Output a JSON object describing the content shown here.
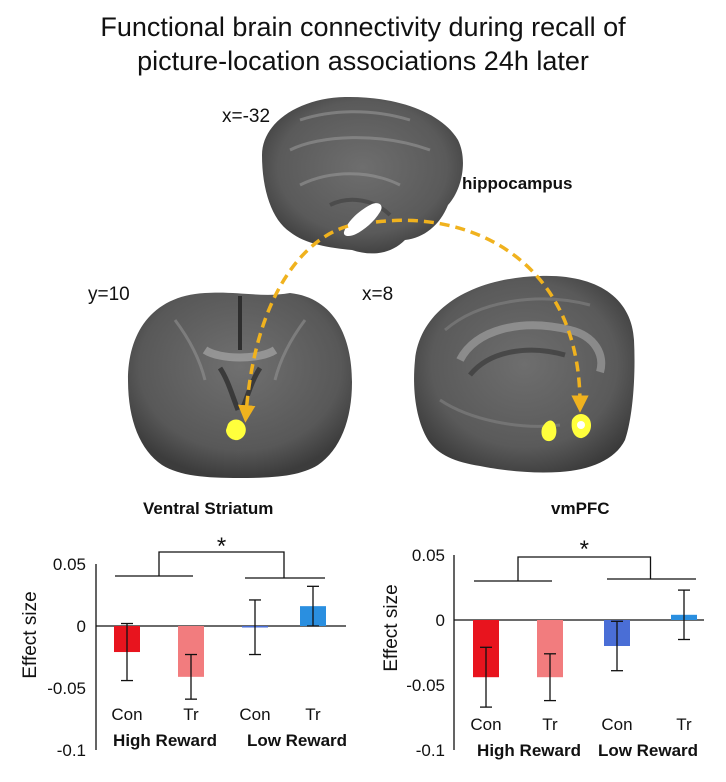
{
  "title_line1": "Functional brain connectivity during recall of",
  "title_line2": "picture-location associations 24h later",
  "labels": {
    "coord_sagittal_top": "x=-32",
    "coord_coronal": "y=10",
    "coord_sagittal_right": "x=8",
    "hippocampus": "hippocampus"
  },
  "colors": {
    "con_high": "#e8141e",
    "tr_high": "#f27c7e",
    "con_low": "#4a6ed6",
    "tr_low": "#2a8fe0",
    "arrow": "#f0b21e",
    "roi_seed": "#ffffff",
    "roi_hit": "#ffff3c"
  },
  "chart_data": [
    {
      "type": "bar",
      "title": "Ventral Striatum",
      "ylabel": "Effect size",
      "ylim": [
        -0.1,
        0.05
      ],
      "yticks": [
        "0.05",
        "0",
        "-0.05",
        "-0.1"
      ],
      "categories": [
        "Con",
        "Tr",
        "Con",
        "Tr"
      ],
      "groups": [
        "High Reward",
        "Low Reward"
      ],
      "values": [
        -0.021,
        -0.041,
        -0.001,
        0.016
      ],
      "error": [
        0.023,
        0.018,
        0.022,
        0.016
      ],
      "significance": "*"
    },
    {
      "type": "bar",
      "title": "vmPFC",
      "ylabel": "Effect size",
      "ylim": [
        -0.1,
        0.05
      ],
      "yticks": [
        "0.05",
        "0",
        "-0.05",
        "-0.1"
      ],
      "categories": [
        "Con",
        "Tr",
        "Con",
        "Tr"
      ],
      "groups": [
        "High Reward",
        "Low Reward"
      ],
      "values": [
        -0.044,
        -0.044,
        -0.02,
        0.004
      ],
      "error": [
        0.023,
        0.018,
        0.019,
        0.019
      ],
      "significance": "*"
    }
  ]
}
